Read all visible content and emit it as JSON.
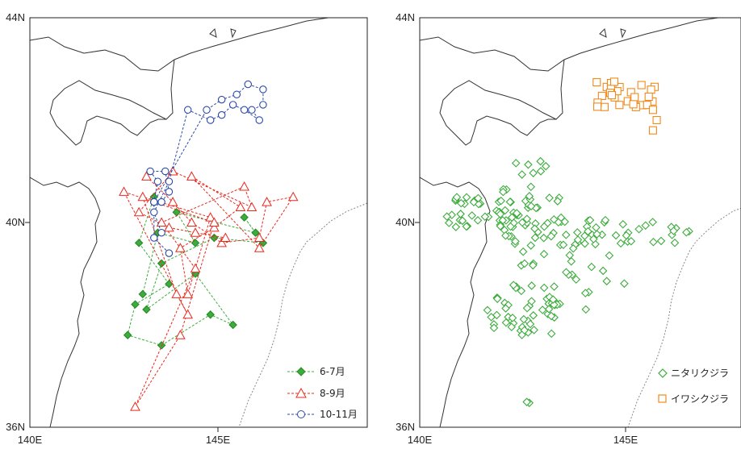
{
  "colors": {
    "group1": "#3cac3c",
    "group2": "#e8291e",
    "group3": "#2a4aa8",
    "group4": "#f08a1c",
    "coast": "#333333",
    "eez": "#888888"
  },
  "axes": {
    "lon_range": [
      140,
      148
    ],
    "lat_range": [
      36,
      44
    ],
    "x_ticks": [
      {
        "value": 140,
        "label": "140E"
      },
      {
        "value": 145,
        "label": "145E"
      }
    ],
    "y_ticks": [
      {
        "value": 36,
        "label": "36N"
      },
      {
        "value": 40,
        "label": "40N"
      },
      {
        "value": 44,
        "label": "44N"
      }
    ]
  },
  "left_map": {
    "legend": [
      {
        "label": "6-7月",
        "color": "#3cac3c",
        "marker": "diamond-filled"
      },
      {
        "label": "8-9月",
        "color": "#e8291e",
        "marker": "triangle-open"
      },
      {
        "label": "10-11月",
        "color": "#2a4aa8",
        "marker": "circle-open"
      }
    ],
    "tracks": [
      {
        "group": "6-7月",
        "color": "#3cac3c",
        "marker": "diamond-filled",
        "points": [
          [
            143.3,
            40.5
          ],
          [
            142.9,
            39.6
          ],
          [
            143.7,
            38.8
          ],
          [
            142.8,
            38.4
          ],
          [
            142.6,
            37.8
          ],
          [
            143.5,
            37.6
          ],
          [
            144.8,
            38.2
          ],
          [
            145.4,
            38.0
          ],
          [
            144.4,
            39.0
          ],
          [
            143.1,
            38.3
          ],
          [
            143.5,
            39.2
          ],
          [
            144.9,
            39.7
          ],
          [
            146.2,
            39.6
          ],
          [
            145.7,
            40.1
          ],
          [
            146.0,
            39.8
          ],
          [
            143.9,
            40.2
          ],
          [
            144.4,
            39.6
          ],
          [
            143.4,
            39.8
          ],
          [
            143.0,
            38.6
          ]
        ]
      },
      {
        "group": "8-9月",
        "color": "#e8291e",
        "marker": "triangle-open",
        "points": [
          [
            143.1,
            40.9
          ],
          [
            143.8,
            40.4
          ],
          [
            144.3,
            40.0
          ],
          [
            145.1,
            39.6
          ],
          [
            146.1,
            39.7
          ],
          [
            146.3,
            40.4
          ],
          [
            147.0,
            40.5
          ],
          [
            146.1,
            39.5
          ],
          [
            144.3,
            40.9
          ],
          [
            145.6,
            40.3
          ],
          [
            144.9,
            39.9
          ],
          [
            144.0,
            39.5
          ],
          [
            144.2,
            38.6
          ],
          [
            144.8,
            40.1
          ],
          [
            143.0,
            40.5
          ],
          [
            143.9,
            38.6
          ],
          [
            144.2,
            38.2
          ],
          [
            142.5,
            40.6
          ],
          [
            144.9,
            40.0
          ],
          [
            144.0,
            37.8
          ],
          [
            142.8,
            36.4
          ],
          [
            144.4,
            39.1
          ],
          [
            143.5,
            40.0
          ],
          [
            145.7,
            40.7
          ],
          [
            145.9,
            40.3
          ],
          [
            143.8,
            41.0
          ],
          [
            142.9,
            40.2
          ],
          [
            143.7,
            39.9
          ],
          [
            144.4,
            39.8
          ],
          [
            145.2,
            39.7
          ]
        ]
      },
      {
        "group": "10-11月",
        "color": "#2a4aa8",
        "marker": "circle-open",
        "points": [
          [
            143.7,
            39.4
          ],
          [
            143.3,
            39.7
          ],
          [
            143.3,
            40.4
          ],
          [
            143.4,
            40.8
          ],
          [
            143.2,
            41.0
          ],
          [
            143.6,
            41.0
          ],
          [
            143.7,
            40.6
          ],
          [
            143.5,
            40.4
          ],
          [
            143.3,
            40.4
          ],
          [
            144.7,
            42.2
          ],
          [
            145.1,
            42.4
          ],
          [
            145.5,
            42.5
          ],
          [
            145.8,
            42.7
          ],
          [
            146.2,
            42.6
          ],
          [
            146.2,
            42.3
          ],
          [
            145.9,
            42.2
          ],
          [
            146.1,
            42.0
          ],
          [
            145.7,
            42.2
          ],
          [
            145.4,
            42.3
          ],
          [
            145.1,
            42.1
          ],
          [
            144.8,
            42.0
          ],
          [
            144.2,
            42.2
          ],
          [
            143.7,
            40.8
          ],
          [
            143.3,
            40.2
          ],
          [
            143.5,
            39.8
          ]
        ]
      }
    ]
  },
  "right_map": {
    "legend": [
      {
        "label": "ニタリクジラ",
        "color": "#3cac3c",
        "marker": "diamond-open"
      },
      {
        "label": "イワシクジラ",
        "color": "#f08a1c",
        "marker": "square-open"
      }
    ]
  }
}
